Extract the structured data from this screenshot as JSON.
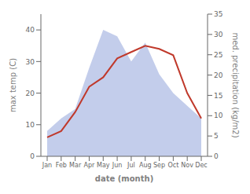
{
  "chart_data": {
    "type": "line",
    "xlabel": "date (month)",
    "ylabel": "max temp (C)",
    "y2label": "med. precipitation (kg/m2)",
    "categories": [
      "Jan",
      "Feb",
      "Mar",
      "Apr",
      "May",
      "Jun",
      "Jul",
      "Aug",
      "Sep",
      "Oct",
      "Nov",
      "Dec"
    ],
    "series": [
      {
        "type": "area",
        "color": "#b8c4e8",
        "values": [
          8,
          12,
          15,
          28,
          40,
          38,
          30,
          36,
          26,
          20,
          16,
          12
        ]
      },
      {
        "type": "line",
        "color": "#c0392b",
        "values": [
          6,
          8,
          14,
          22,
          25,
          31,
          33,
          35,
          34,
          32,
          20,
          12
        ]
      }
    ],
    "ylim": [
      0,
      45
    ],
    "yticks": [
      0,
      10,
      20,
      30,
      40
    ],
    "y2lim": [
      0,
      35
    ],
    "y2ticks": [
      0,
      5,
      10,
      15,
      20,
      25,
      30,
      35
    ],
    "grid": false
  }
}
